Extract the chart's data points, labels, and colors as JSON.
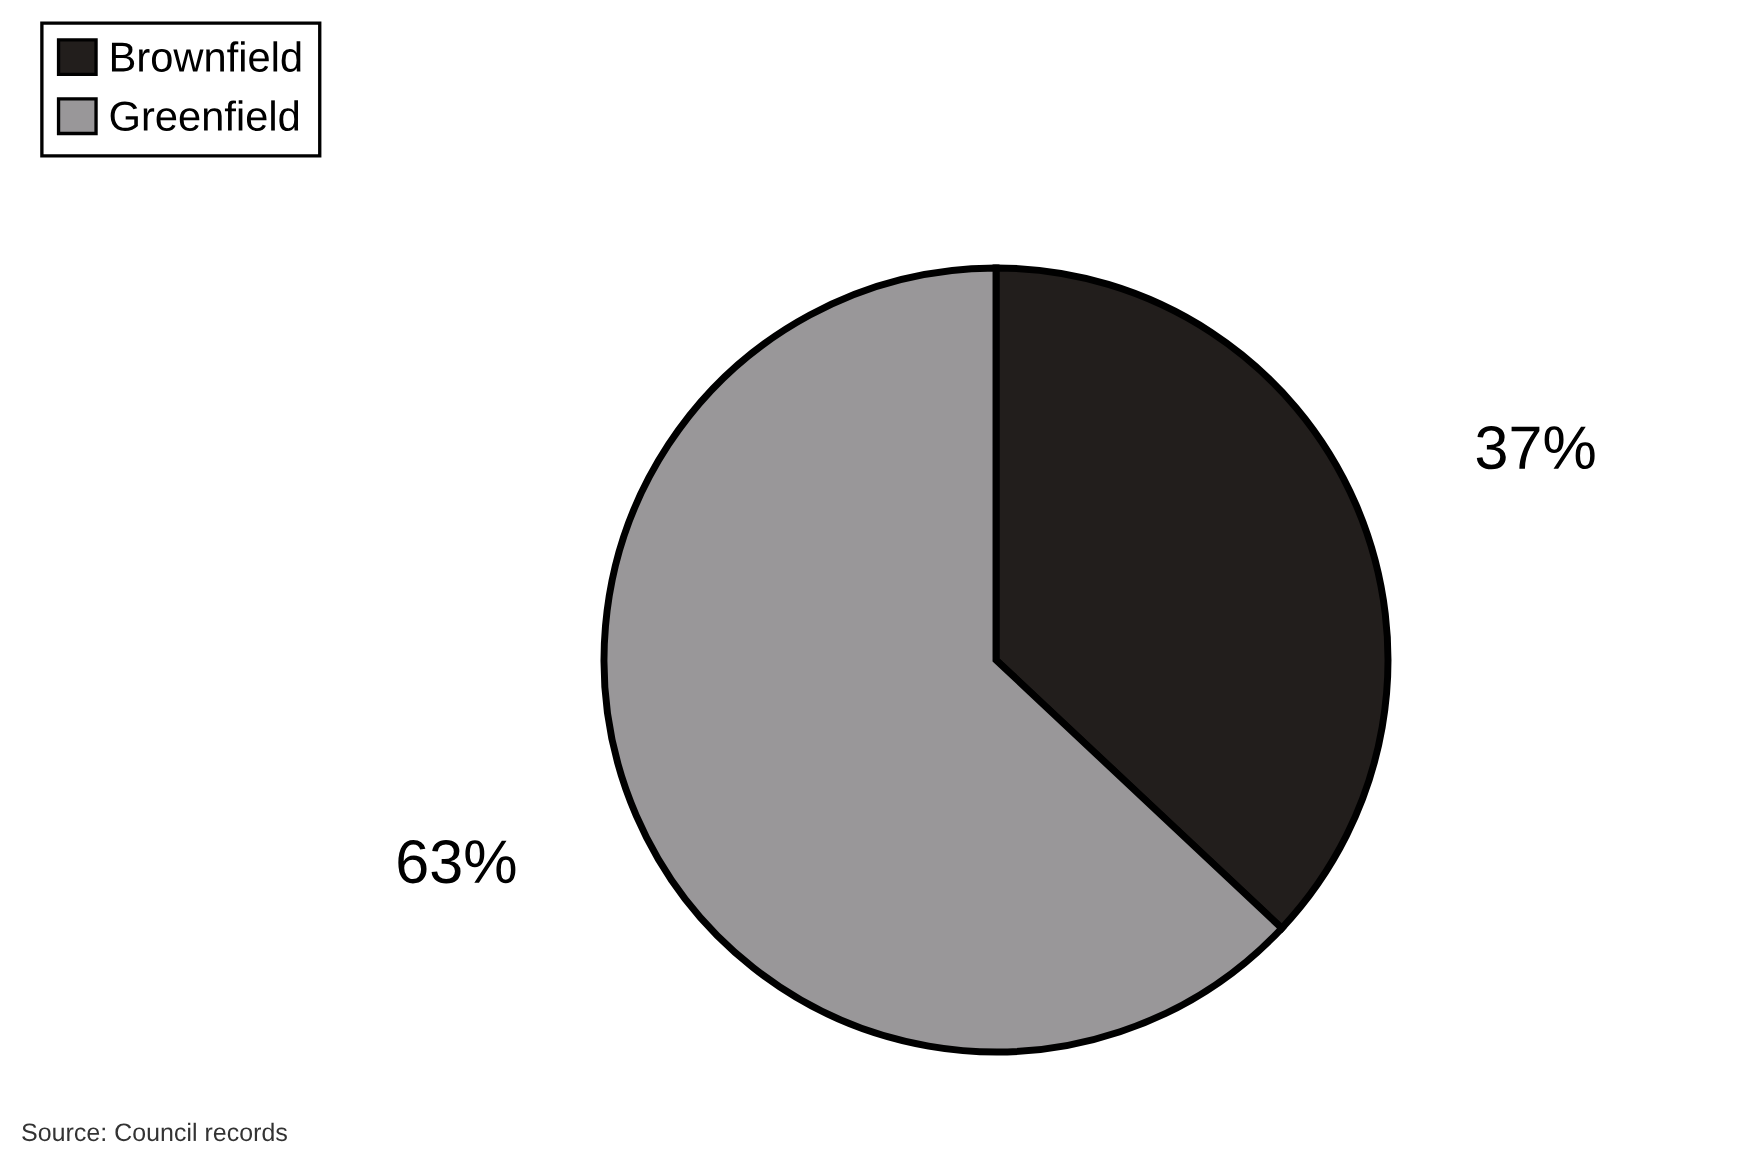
{
  "chart_data": {
    "type": "pie",
    "categories": [
      "Brownfield",
      "Greenfield"
    ],
    "values": [
      37,
      63
    ],
    "colors": [
      "#221e1c",
      "#999799"
    ],
    "value_labels": [
      "37%",
      "63%"
    ],
    "legend": "top left",
    "annotations": [
      "Source: Council records"
    ]
  }
}
